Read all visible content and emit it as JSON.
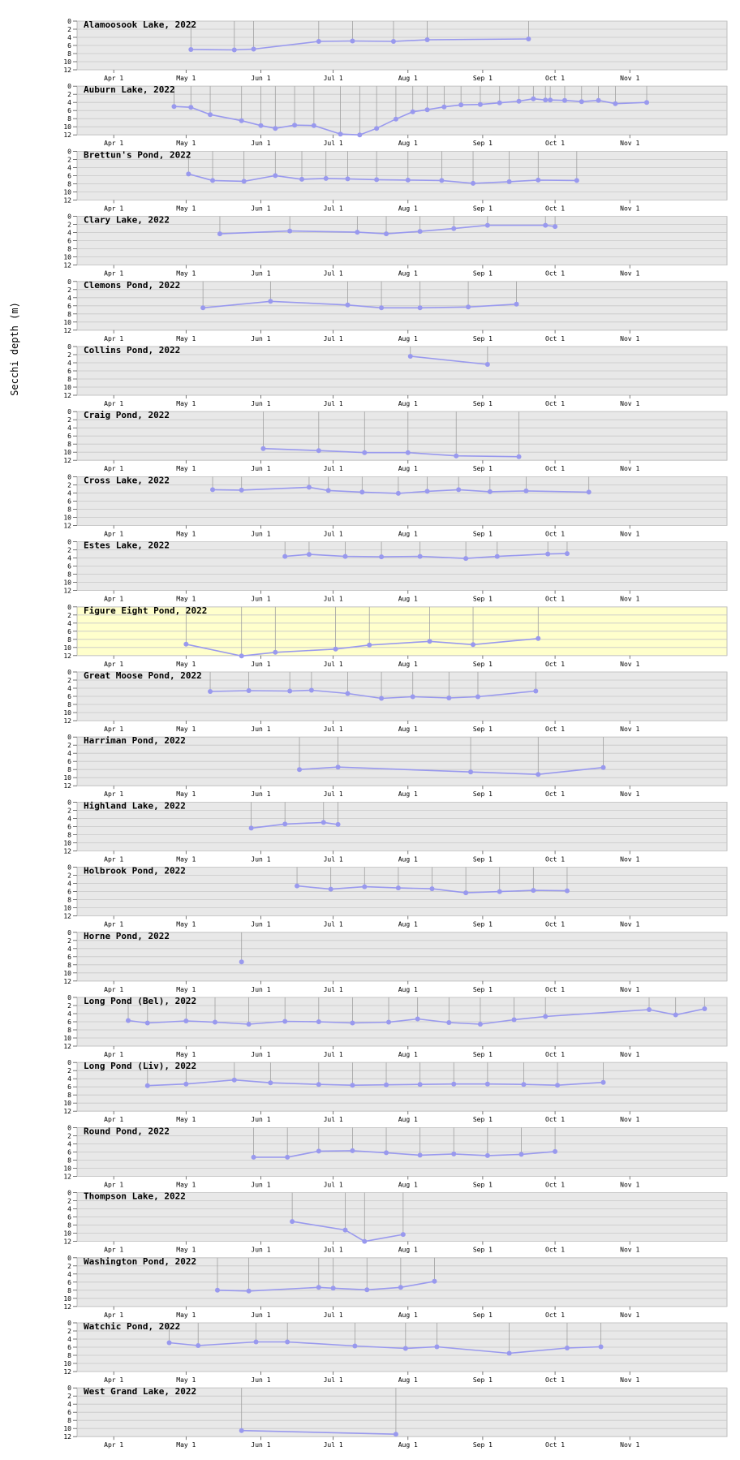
{
  "ylabel": "Secchi depth (m)",
  "y_ticks": [
    "0",
    "2",
    "4",
    "6",
    "8",
    "10",
    "12"
  ],
  "x_ticks": [
    {
      "label": "Apr 1",
      "doy": 91
    },
    {
      "label": "May 1",
      "doy": 121
    },
    {
      "label": "Jun 1",
      "doy": 152
    },
    {
      "label": "Jul 1",
      "doy": 182
    },
    {
      "label": "Aug 1",
      "doy": 213
    },
    {
      "label": "Sep 1",
      "doy": 244
    },
    {
      "label": "Oct 1",
      "doy": 274
    },
    {
      "label": "Nov 1",
      "doy": 305
    }
  ],
  "colors": {
    "panel_bg": "#e8e8e8",
    "panel_highlight_bg": "#ffffcc",
    "grid": "#c8c8c8",
    "series": "#9999ee",
    "stem": "#a0a0a0"
  },
  "chart_data": [
    {
      "type": "line",
      "title": "Alamoosook Lake, 2022",
      "highlight": false,
      "x_axis": "day of year 2022",
      "ylim": [
        0,
        12
      ],
      "y_inverted": true,
      "points": [
        [
          123,
          7.0
        ],
        [
          141,
          7.1
        ],
        [
          149,
          6.9
        ],
        [
          176,
          5.0
        ],
        [
          190,
          4.9
        ],
        [
          207,
          5.0
        ],
        [
          221,
          4.6
        ],
        [
          263,
          4.4
        ]
      ]
    },
    {
      "type": "line",
      "title": "Auburn Lake, 2022",
      "highlight": false,
      "x_axis": "day of year 2022",
      "ylim": [
        0,
        12
      ],
      "y_inverted": true,
      "points": [
        [
          116,
          5.0
        ],
        [
          123,
          5.2
        ],
        [
          131,
          7.0
        ],
        [
          144,
          8.5
        ],
        [
          152,
          9.7
        ],
        [
          158,
          10.4
        ],
        [
          166,
          9.6
        ],
        [
          174,
          9.7
        ],
        [
          185,
          11.8
        ],
        [
          193,
          12.0
        ],
        [
          200,
          10.4
        ],
        [
          208,
          8.1
        ],
        [
          215,
          6.3
        ],
        [
          221,
          5.8
        ],
        [
          228,
          5.1
        ],
        [
          235,
          4.6
        ],
        [
          243,
          4.5
        ],
        [
          251,
          4.1
        ],
        [
          259,
          3.7
        ],
        [
          265,
          3.1
        ],
        [
          270,
          3.4
        ],
        [
          272,
          3.4
        ],
        [
          278,
          3.5
        ],
        [
          285,
          3.8
        ],
        [
          292,
          3.5
        ],
        [
          299,
          4.3
        ],
        [
          312,
          4.0
        ]
      ]
    },
    {
      "type": "line",
      "title": "Brettun's Pond, 2022",
      "highlight": false,
      "x_axis": "day of year 2022",
      "ylim": [
        0,
        12
      ],
      "y_inverted": true,
      "points": [
        [
          122,
          5.6
        ],
        [
          132,
          7.2
        ],
        [
          145,
          7.4
        ],
        [
          158,
          6.0
        ],
        [
          169,
          6.9
        ],
        [
          179,
          6.7
        ],
        [
          188,
          6.8
        ],
        [
          200,
          7.0
        ],
        [
          213,
          7.1
        ],
        [
          227,
          7.2
        ],
        [
          240,
          7.9
        ],
        [
          255,
          7.5
        ],
        [
          267,
          7.1
        ],
        [
          283,
          7.2
        ]
      ]
    },
    {
      "type": "line",
      "title": "Clary Lake, 2022",
      "highlight": false,
      "x_axis": "day of year 2022",
      "ylim": [
        0,
        12
      ],
      "y_inverted": true,
      "points": [
        [
          135,
          4.3
        ],
        [
          164,
          3.6
        ],
        [
          192,
          3.9
        ],
        [
          204,
          4.3
        ],
        [
          218,
          3.7
        ],
        [
          232,
          3.0
        ],
        [
          246,
          2.2
        ],
        [
          270,
          2.2
        ],
        [
          274,
          2.5
        ]
      ]
    },
    {
      "type": "line",
      "title": "Clemons Pond, 2022",
      "highlight": false,
      "x_axis": "day of year 2022",
      "ylim": [
        0,
        12
      ],
      "y_inverted": true,
      "points": [
        [
          128,
          6.5
        ],
        [
          156,
          4.9
        ],
        [
          188,
          5.8
        ],
        [
          202,
          6.5
        ],
        [
          218,
          6.5
        ],
        [
          238,
          6.3
        ],
        [
          258,
          5.6
        ]
      ]
    },
    {
      "type": "line",
      "title": "Collins Pond, 2022",
      "highlight": false,
      "x_axis": "day of year 2022",
      "ylim": [
        0,
        12
      ],
      "y_inverted": true,
      "points": [
        [
          214,
          2.4
        ],
        [
          246,
          4.4
        ]
      ]
    },
    {
      "type": "line",
      "title": "Craig Pond, 2022",
      "highlight": false,
      "x_axis": "day of year 2022",
      "ylim": [
        0,
        12
      ],
      "y_inverted": true,
      "points": [
        [
          153,
          9.1
        ],
        [
          176,
          9.6
        ],
        [
          195,
          10.1
        ],
        [
          213,
          10.1
        ],
        [
          233,
          10.9
        ],
        [
          259,
          11.1
        ]
      ]
    },
    {
      "type": "line",
      "title": "Cross Lake, 2022",
      "highlight": false,
      "x_axis": "day of year 2022",
      "ylim": [
        0,
        12
      ],
      "y_inverted": true,
      "points": [
        [
          132,
          3.2
        ],
        [
          144,
          3.3
        ],
        [
          172,
          2.6
        ],
        [
          180,
          3.4
        ],
        [
          194,
          3.8
        ],
        [
          209,
          4.1
        ],
        [
          221,
          3.6
        ],
        [
          234,
          3.2
        ],
        [
          247,
          3.7
        ],
        [
          262,
          3.5
        ],
        [
          288,
          3.8
        ]
      ]
    },
    {
      "type": "line",
      "title": "Estes Lake, 2022",
      "highlight": false,
      "x_axis": "day of year 2022",
      "ylim": [
        0,
        12
      ],
      "y_inverted": true,
      "points": [
        [
          162,
          3.6
        ],
        [
          172,
          3.1
        ],
        [
          187,
          3.6
        ],
        [
          202,
          3.7
        ],
        [
          218,
          3.6
        ],
        [
          237,
          4.1
        ],
        [
          250,
          3.6
        ],
        [
          271,
          3.0
        ],
        [
          279,
          2.9
        ]
      ]
    },
    {
      "type": "line",
      "title": "Figure Eight Pond, 2022",
      "highlight": true,
      "x_axis": "day of year 2022",
      "ylim": [
        0,
        12
      ],
      "y_inverted": true,
      "points": [
        [
          121,
          9.2
        ],
        [
          144,
          12.1
        ],
        [
          158,
          11.2
        ],
        [
          183,
          10.4
        ],
        [
          197,
          9.4
        ],
        [
          222,
          8.5
        ],
        [
          240,
          9.3
        ],
        [
          267,
          7.8
        ]
      ]
    },
    {
      "type": "line",
      "title": "Great Moose Pond, 2022",
      "highlight": false,
      "x_axis": "day of year 2022",
      "ylim": [
        0,
        12
      ],
      "y_inverted": true,
      "points": [
        [
          131,
          4.8
        ],
        [
          147,
          4.6
        ],
        [
          164,
          4.7
        ],
        [
          173,
          4.5
        ],
        [
          188,
          5.3
        ],
        [
          202,
          6.5
        ],
        [
          215,
          6.1
        ],
        [
          230,
          6.4
        ],
        [
          242,
          6.1
        ],
        [
          266,
          4.7
        ]
      ]
    },
    {
      "type": "line",
      "title": "Harriman Pond, 2022",
      "highlight": false,
      "x_axis": "day of year 2022",
      "ylim": [
        0,
        12
      ],
      "y_inverted": true,
      "points": [
        [
          168,
          8.0
        ],
        [
          184,
          7.4
        ],
        [
          239,
          8.6
        ],
        [
          267,
          9.2
        ],
        [
          294,
          7.5
        ]
      ]
    },
    {
      "type": "line",
      "title": "Highland Lake, 2022",
      "highlight": false,
      "x_axis": "day of year 2022",
      "ylim": [
        0,
        12
      ],
      "y_inverted": true,
      "points": [
        [
          148,
          6.4
        ],
        [
          162,
          5.4
        ],
        [
          178,
          5.0
        ],
        [
          184,
          5.5
        ]
      ]
    },
    {
      "type": "line",
      "title": "Holbrook Pond, 2022",
      "highlight": false,
      "x_axis": "day of year 2022",
      "ylim": [
        0,
        12
      ],
      "y_inverted": true,
      "points": [
        [
          167,
          4.6
        ],
        [
          181,
          5.4
        ],
        [
          195,
          4.8
        ],
        [
          209,
          5.1
        ],
        [
          223,
          5.3
        ],
        [
          237,
          6.3
        ],
        [
          251,
          6.0
        ],
        [
          265,
          5.7
        ],
        [
          279,
          5.8
        ]
      ]
    },
    {
      "type": "line",
      "title": "Horne Pond, 2022",
      "highlight": false,
      "x_axis": "day of year 2022",
      "ylim": [
        0,
        12
      ],
      "y_inverted": true,
      "points": [
        [
          144,
          7.3
        ]
      ]
    },
    {
      "type": "line",
      "title": "Long Pond (Bel), 2022",
      "highlight": false,
      "x_axis": "day of year 2022",
      "ylim": [
        0,
        12
      ],
      "y_inverted": true,
      "points": [
        [
          97,
          5.7
        ],
        [
          105,
          6.3
        ],
        [
          121,
          5.8
        ],
        [
          133,
          6.1
        ],
        [
          147,
          6.6
        ],
        [
          162,
          5.9
        ],
        [
          176,
          6.0
        ],
        [
          190,
          6.3
        ],
        [
          205,
          6.1
        ],
        [
          217,
          5.3
        ],
        [
          230,
          6.2
        ],
        [
          243,
          6.6
        ],
        [
          257,
          5.5
        ],
        [
          270,
          4.7
        ],
        [
          313,
          3.0
        ],
        [
          324,
          4.3
        ],
        [
          336,
          2.8
        ]
      ]
    },
    {
      "type": "line",
      "title": "Long Pond (Liv), 2022",
      "highlight": false,
      "x_axis": "day of year 2022",
      "ylim": [
        0,
        12
      ],
      "y_inverted": true,
      "points": [
        [
          105,
          5.7
        ],
        [
          121,
          5.3
        ],
        [
          141,
          4.3
        ],
        [
          156,
          5.0
        ],
        [
          176,
          5.4
        ],
        [
          190,
          5.6
        ],
        [
          204,
          5.5
        ],
        [
          218,
          5.4
        ],
        [
          232,
          5.3
        ],
        [
          246,
          5.3
        ],
        [
          261,
          5.4
        ],
        [
          275,
          5.6
        ],
        [
          294,
          4.9
        ]
      ]
    },
    {
      "type": "line",
      "title": "Round Pond, 2022",
      "highlight": false,
      "x_axis": "day of year 2022",
      "ylim": [
        0,
        12
      ],
      "y_inverted": true,
      "points": [
        [
          149,
          7.3
        ],
        [
          163,
          7.3
        ],
        [
          176,
          5.8
        ],
        [
          190,
          5.7
        ],
        [
          204,
          6.2
        ],
        [
          218,
          6.8
        ],
        [
          232,
          6.5
        ],
        [
          246,
          6.9
        ],
        [
          260,
          6.6
        ],
        [
          274,
          5.9
        ]
      ]
    },
    {
      "type": "line",
      "title": "Thompson Lake, 2022",
      "highlight": false,
      "x_axis": "day of year 2022",
      "ylim": [
        0,
        12
      ],
      "y_inverted": true,
      "points": [
        [
          165,
          7.1
        ],
        [
          187,
          9.2
        ],
        [
          195,
          12.0
        ],
        [
          211,
          10.3
        ]
      ]
    },
    {
      "type": "line",
      "title": "Washington Pond, 2022",
      "highlight": false,
      "x_axis": "day of year 2022",
      "ylim": [
        0,
        12
      ],
      "y_inverted": true,
      "points": [
        [
          134,
          8.0
        ],
        [
          147,
          8.2
        ],
        [
          176,
          7.3
        ],
        [
          182,
          7.5
        ],
        [
          196,
          7.9
        ],
        [
          210,
          7.3
        ],
        [
          224,
          5.8
        ]
      ]
    },
    {
      "type": "line",
      "title": "Watchic Pond, 2022",
      "highlight": false,
      "x_axis": "day of year 2022",
      "ylim": [
        0,
        12
      ],
      "y_inverted": true,
      "points": [
        [
          114,
          4.9
        ],
        [
          126,
          5.6
        ],
        [
          150,
          4.7
        ],
        [
          163,
          4.7
        ],
        [
          191,
          5.7
        ],
        [
          212,
          6.3
        ],
        [
          225,
          5.9
        ],
        [
          255,
          7.5
        ],
        [
          279,
          6.2
        ],
        [
          293,
          5.9
        ]
      ]
    },
    {
      "type": "line",
      "title": "West Grand Lake, 2022",
      "highlight": false,
      "x_axis": "day of year 2022",
      "ylim": [
        0,
        12
      ],
      "y_inverted": true,
      "points": [
        [
          144,
          10.5
        ],
        [
          208,
          11.4
        ]
      ]
    }
  ]
}
